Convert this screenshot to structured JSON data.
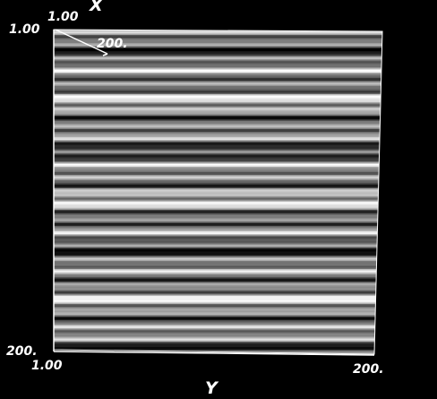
{
  "axes": {
    "x": {
      "title": "X",
      "tick_labels": [
        "1.00",
        "200."
      ]
    },
    "y": {
      "title": "Y",
      "tick_labels": [
        "1.00",
        "200."
      ]
    },
    "vertical": {
      "tick_labels": [
        "1.00",
        "200."
      ]
    }
  }
}
